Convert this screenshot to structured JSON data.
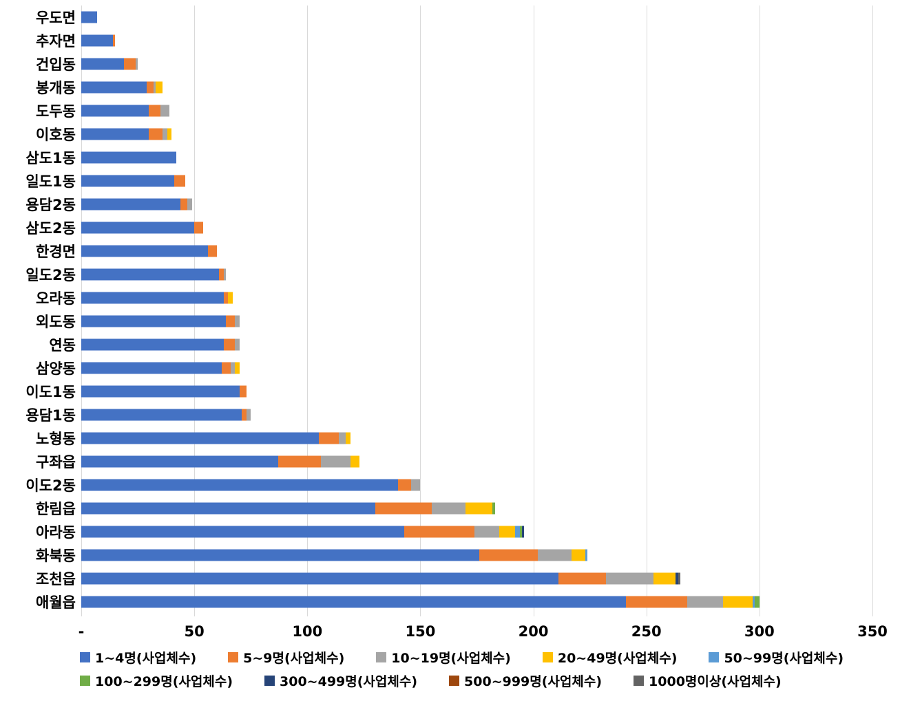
{
  "chart_data": {
    "type": "bar",
    "orientation": "horizontal",
    "stacked": true,
    "grid": true,
    "legend_position": "bottom",
    "xlim": [
      0,
      350
    ],
    "xticks": [
      "-",
      "50",
      "100",
      "150",
      "200",
      "250",
      "300",
      "350"
    ],
    "categories": [
      "우도면",
      "추자면",
      "건입동",
      "봉개동",
      "도두동",
      "이호동",
      "삼도1동",
      "일도1동",
      "용담2동",
      "삼도2동",
      "한경면",
      "일도2동",
      "오라동",
      "외도동",
      "연동",
      "삼양동",
      "이도1동",
      "용담1동",
      "노형동",
      "구좌읍",
      "이도2동",
      "한림읍",
      "아라동",
      "화북동",
      "조천읍",
      "애월읍"
    ],
    "series": [
      {
        "name": "1~4명(사업체수)",
        "color": "#4472C4",
        "values": [
          7,
          14,
          19,
          29,
          30,
          30,
          42,
          41,
          44,
          50,
          56,
          61,
          63,
          64,
          63,
          62,
          70,
          71,
          105,
          87,
          140,
          130,
          143,
          176,
          211,
          241
        ]
      },
      {
        "name": "5~9명(사업체수)",
        "color": "#ED7D31",
        "values": [
          0,
          1,
          5,
          3,
          5,
          6,
          0,
          5,
          3,
          4,
          4,
          2,
          2,
          4,
          5,
          4,
          3,
          2,
          9,
          19,
          6,
          25,
          31,
          26,
          21,
          27
        ]
      },
      {
        "name": "10~19명(사업체수)",
        "color": "#A5A5A5",
        "values": [
          0,
          0,
          1,
          1,
          4,
          2,
          0,
          0,
          2,
          0,
          0,
          1,
          0,
          2,
          2,
          2,
          0,
          2,
          3,
          13,
          4,
          15,
          11,
          15,
          21,
          16
        ]
      },
      {
        "name": "20~49명(사업체수)",
        "color": "#FFC000",
        "values": [
          0,
          0,
          0,
          3,
          0,
          2,
          0,
          0,
          0,
          0,
          0,
          0,
          2,
          0,
          0,
          2,
          0,
          0,
          2,
          4,
          0,
          12,
          7,
          6,
          10,
          13
        ]
      },
      {
        "name": "50~99명(사업체수)",
        "color": "#5B9BD5",
        "values": [
          0,
          0,
          0,
          0,
          0,
          0,
          0,
          0,
          0,
          0,
          0,
          0,
          0,
          0,
          0,
          0,
          0,
          0,
          0,
          0,
          0,
          0,
          2,
          1,
          0,
          1
        ]
      },
      {
        "name": "100~299명(사업체수)",
        "color": "#70AD47",
        "values": [
          0,
          0,
          0,
          0,
          0,
          0,
          0,
          0,
          0,
          0,
          0,
          0,
          0,
          0,
          0,
          0,
          0,
          0,
          0,
          0,
          0,
          1,
          1,
          0,
          0,
          2
        ]
      },
      {
        "name": "300~499명(사업체수)",
        "color": "#264478",
        "values": [
          0,
          0,
          0,
          0,
          0,
          0,
          0,
          0,
          0,
          0,
          0,
          0,
          0,
          0,
          0,
          0,
          0,
          0,
          0,
          0,
          0,
          0,
          1,
          0,
          1,
          0
        ]
      },
      {
        "name": "500~999명(사업체수)",
        "color": "#9E480E",
        "values": [
          0,
          0,
          0,
          0,
          0,
          0,
          0,
          0,
          0,
          0,
          0,
          0,
          0,
          0,
          0,
          0,
          0,
          0,
          0,
          0,
          0,
          0,
          0,
          0,
          0,
          0
        ]
      },
      {
        "name": "1000명이상(사업체수)",
        "color": "#636363",
        "values": [
          0,
          0,
          0,
          0,
          0,
          0,
          0,
          0,
          0,
          0,
          0,
          0,
          0,
          0,
          0,
          0,
          0,
          0,
          0,
          0,
          0,
          0,
          0,
          0,
          1,
          0
        ]
      }
    ],
    "legend_rows": [
      5,
      4
    ]
  }
}
